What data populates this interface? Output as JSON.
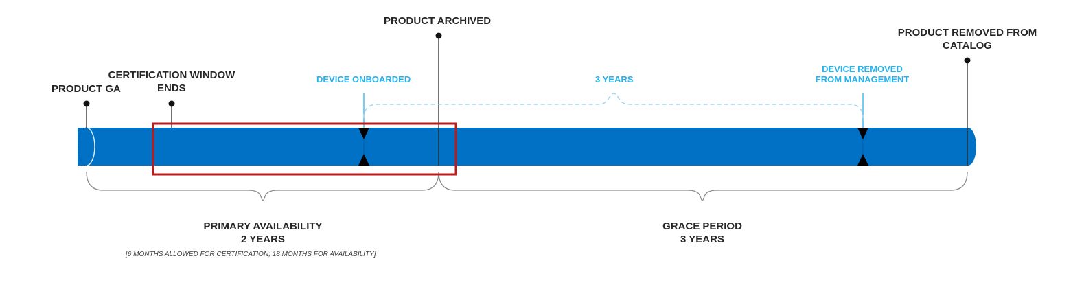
{
  "milestones": {
    "product_ga": "PRODUCT GA",
    "certification_window_ends_line1": "CERTIFICATION WINDOW",
    "certification_window_ends_line2": "ENDS",
    "product_archived": "PRODUCT ARCHIVED",
    "product_removed_line1": "PRODUCT REMOVED FROM",
    "product_removed_line2": "CATALOG"
  },
  "device_events": {
    "device_onboarded": "DEVICE ONBOARDED",
    "span_label": "3 YEARS",
    "device_removed_line1": "DEVICE REMOVED",
    "device_removed_line2": "FROM MANAGEMENT"
  },
  "periods": {
    "primary": {
      "title": "PRIMARY AVAILABILITY",
      "duration": "2 YEARS",
      "note": "[6 MONTHS ALLOWED FOR CERTIFICATION; 18 MONTHS FOR AVAILABILITY]"
    },
    "grace": {
      "title": "GRACE PERIOD",
      "duration": "3 YEARS"
    }
  },
  "colors": {
    "bar": "#0071c5",
    "device_accent": "#25b3ee",
    "highlight_box": "#b91c1c",
    "marker_line": "#262626",
    "brace": "#8a8a8a"
  }
}
